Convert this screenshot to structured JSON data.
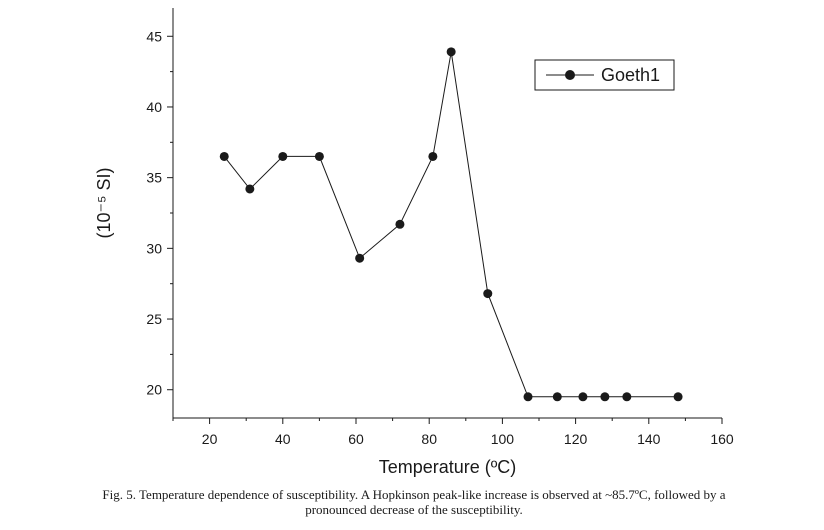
{
  "chart_data": {
    "type": "line",
    "title": "",
    "xlabel": "Temperature (ºC)",
    "ylabel": "(10⁻⁵ SI)",
    "xlim": [
      10,
      160
    ],
    "ylim": [
      18,
      47
    ],
    "xticks": [
      20,
      40,
      60,
      80,
      100,
      120,
      140,
      160
    ],
    "yticks": [
      20,
      25,
      30,
      35,
      40,
      45
    ],
    "x_tick_labels": [
      "20",
      "40",
      "60",
      "80",
      "100",
      "120",
      "140",
      "160"
    ],
    "y_tick_labels": [
      "20",
      "25",
      "30",
      "35",
      "40",
      "45"
    ],
    "legend": {
      "position": "top-right",
      "entries": [
        "Goeth1"
      ]
    },
    "series": [
      {
        "name": "Goeth1",
        "x": [
          24,
          31,
          40,
          50,
          61,
          72,
          81,
          86,
          96,
          107,
          115,
          122,
          128,
          134,
          148
        ],
        "y": [
          36.5,
          34.2,
          36.5,
          36.5,
          29.3,
          31.7,
          36.5,
          43.9,
          26.8,
          19.5,
          19.5,
          19.5,
          19.5,
          19.5,
          19.5
        ]
      }
    ]
  },
  "caption": {
    "line1": "Fig. 5. Temperature dependence of susceptibility. A Hopkinson peak-like increase is observed at ~85.7ºC, followed by a",
    "line2": "pronounced decrease of the susceptibility."
  },
  "colors": {
    "line": "#1a1a1a",
    "marker": "#1a1a1a",
    "axis": "#1a1a1a"
  }
}
